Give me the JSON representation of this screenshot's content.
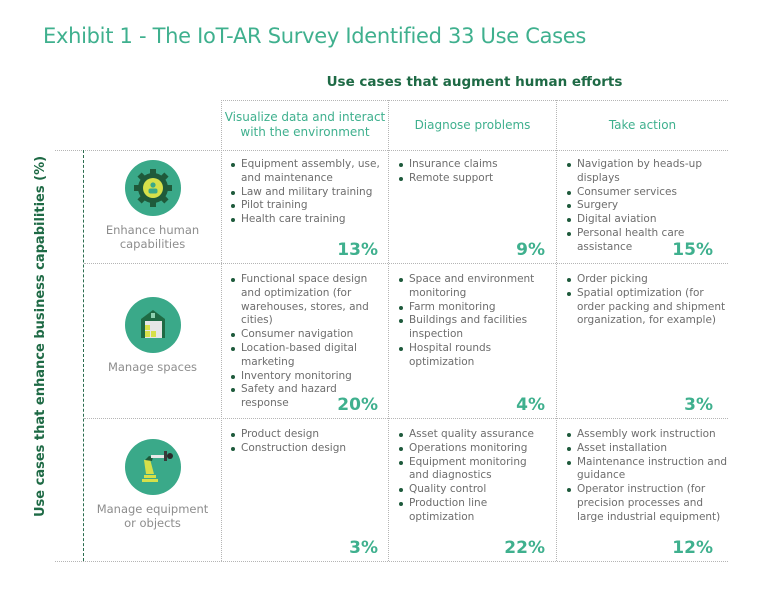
{
  "title": "Exhibit 1 - The IoT-AR Survey Identified 33 Use Cases",
  "top_header": "Use cases that augment human efforts",
  "side_header": "Use cases that enhance business capabilities (%)",
  "columns": [
    {
      "label_line1": "Visualize data and interact",
      "label_line2": "with the environment"
    },
    {
      "label_line1": "Diagnose problems",
      "label_line2": ""
    },
    {
      "label_line1": "Take action",
      "label_line2": ""
    }
  ],
  "rows": [
    {
      "label_line1": "Enhance human",
      "label_line2": "capabilities",
      "icon": "gear-person-icon",
      "cells": [
        {
          "items": [
            "Equipment assembly, use, and maintenance",
            "Law and military training",
            "Pilot training",
            "Health care training"
          ],
          "percent": "13%"
        },
        {
          "items": [
            "Insurance claims",
            "Remote support"
          ],
          "percent": "9%"
        },
        {
          "items": [
            "Navigation by heads-up displays",
            "Consumer services",
            "Surgery",
            "Digital aviation",
            "Personal health care assistance"
          ],
          "percent": "15%"
        }
      ]
    },
    {
      "label_line1": "Manage spaces",
      "label_line2": "",
      "icon": "warehouse-icon",
      "cells": [
        {
          "items": [
            "Functional space design and optimization (for warehouses, stores, and cities)",
            "Consumer navigation",
            "Location-based digital marketing",
            "Inventory monitoring",
            "Safety and hazard response"
          ],
          "percent": "20%"
        },
        {
          "items": [
            "Space and environment monitoring",
            "Farm monitoring",
            "Buildings and facilities inspection",
            "Hospital rounds optimization"
          ],
          "percent": "4%"
        },
        {
          "items": [
            "Order picking",
            "Spatial optimization (for order packing and shipment organization, for example)"
          ],
          "percent": "3%"
        }
      ]
    },
    {
      "label_line1": "Manage equipment",
      "label_line2": "or objects",
      "icon": "robot-arm-icon",
      "cells": [
        {
          "items": [
            "Product design",
            "Construction design"
          ],
          "percent": "3%"
        },
        {
          "items": [
            "Asset quality assurance",
            "Operations monitoring",
            "Equipment monitoring and diagnostics",
            "Quality control",
            "Production line optimization"
          ],
          "percent": "22%"
        },
        {
          "items": [
            "Assembly work instruction",
            "Asset installation",
            "Maintenance instruction and guidance",
            "Operator instruction (for precision processes and large industrial equipment)"
          ],
          "percent": "12%"
        }
      ]
    }
  ],
  "colors": {
    "accent": "#3fb08e",
    "dark_green": "#1e6a45",
    "icon_circle": "#3aa989",
    "icon_yellow": "#d6e04a"
  }
}
